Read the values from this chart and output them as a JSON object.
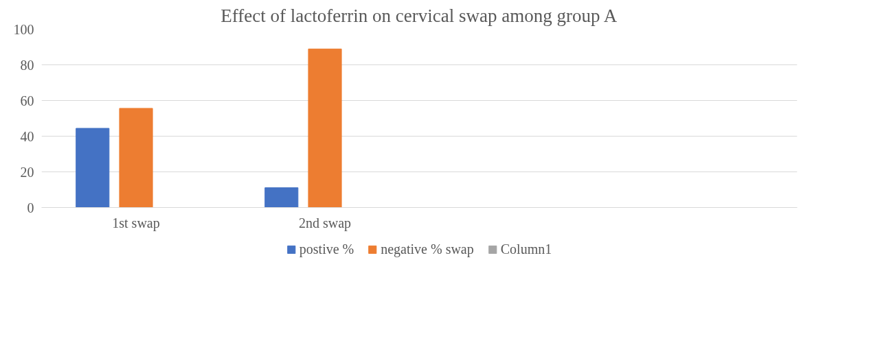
{
  "chart_data": {
    "type": "bar",
    "title": "Effect of lactoferrin on cervical swap among group A",
    "categories": [
      "1st swap",
      "2nd swap",
      null,
      null
    ],
    "series": [
      {
        "name": "postive %",
        "color": "#4472c4",
        "values": [
          44.4,
          11.1,
          null,
          null
        ]
      },
      {
        "name": "negative % swap",
        "color": "#ed7d31",
        "values": [
          55.6,
          88.9,
          null,
          null
        ]
      },
      {
        "name": "Column1",
        "color": "#a5a5a5",
        "values": [
          null,
          null,
          null,
          null
        ]
      }
    ],
    "ylim": [
      0,
      100
    ],
    "yticks": [
      0,
      20,
      40,
      60,
      80,
      100
    ],
    "grid": "y",
    "legend": "bottom"
  }
}
